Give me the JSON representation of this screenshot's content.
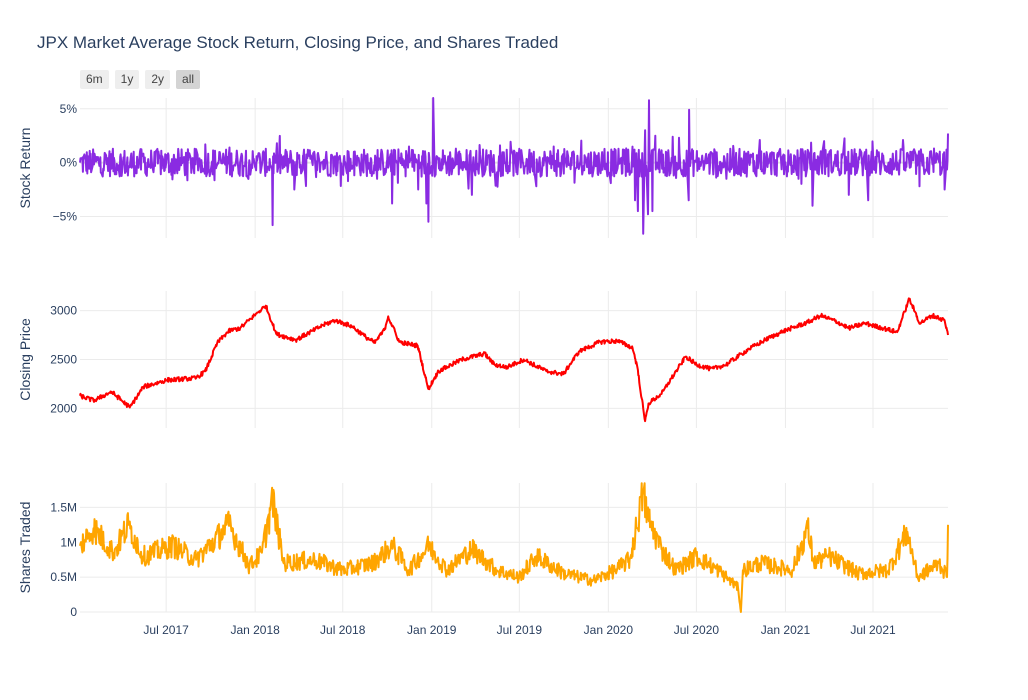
{
  "title": "JPX Market Average Stock Return, Closing Price, and Shares Traded",
  "range_selector": {
    "buttons": [
      {
        "label": "6m",
        "active": false
      },
      {
        "label": "1y",
        "active": false
      },
      {
        "label": "2y",
        "active": false
      },
      {
        "label": "all",
        "active": true
      }
    ]
  },
  "colors": {
    "return_line": "#8a2be2",
    "price_line": "#ff0000",
    "shares_line": "#ffa500",
    "grid": "#ebebeb",
    "zero_line": "#e0e0e0"
  },
  "chart_data": [
    {
      "type": "line",
      "x_range": [
        "2017-01-04",
        "2021-12-03"
      ],
      "x_tick_labels": [
        "Jul 2017",
        "Jan 2018",
        "Jul 2018",
        "Jan 2019",
        "Jul 2019",
        "Jan 2020",
        "Jul 2020",
        "Jan 2021",
        "Jul 2021"
      ],
      "ylabel": "Stock Return",
      "y_unit": "percent",
      "ylim": [
        -7,
        6
      ],
      "y_tick_labels": [
        "5%",
        "0%",
        "−5%"
      ],
      "grid": true,
      "series": [
        {
          "anchors": [
            [
              "2017-01-04",
              0.0
            ],
            [
              "2017-02-15",
              0.5
            ],
            [
              "2017-04-13",
              -1.2
            ],
            [
              "2017-06-01",
              0.4
            ],
            [
              "2017-08-10",
              -0.8
            ],
            [
              "2017-11-09",
              1.4
            ],
            [
              "2018-01-04",
              0.6
            ],
            [
              "2018-02-06",
              -5.8
            ],
            [
              "2018-02-15",
              1.8
            ],
            [
              "2018-03-23",
              -2.5
            ],
            [
              "2018-04-20",
              1.2
            ],
            [
              "2018-06-20",
              -0.8
            ],
            [
              "2018-07-24",
              1.0
            ],
            [
              "2018-09-05",
              -0.7
            ],
            [
              "2018-10-11",
              -3.8
            ],
            [
              "2018-11-15",
              1.5
            ],
            [
              "2018-12-04",
              -2.5
            ],
            [
              "2018-12-21",
              -3.8
            ],
            [
              "2018-12-25",
              -5.5
            ],
            [
              "2018-12-26",
              0.9
            ],
            [
              "2019-01-04",
              6.0
            ],
            [
              "2019-02-20",
              1.3
            ],
            [
              "2019-03-25",
              -3.0
            ],
            [
              "2019-05-14",
              -1.8
            ],
            [
              "2019-06-05",
              1.2
            ],
            [
              "2019-08-05",
              -2.2
            ],
            [
              "2019-09-10",
              1.5
            ],
            [
              "2019-11-15",
              0.5
            ],
            [
              "2020-01-06",
              -1.9
            ],
            [
              "2020-02-05",
              1.0
            ],
            [
              "2020-02-25",
              -3.5
            ],
            [
              "2020-03-02",
              -4.5
            ],
            [
              "2020-03-13",
              -6.6
            ],
            [
              "2020-03-17",
              3.0
            ],
            [
              "2020-03-23",
              -4.8
            ],
            [
              "2020-03-25",
              5.8
            ],
            [
              "2020-04-01",
              -4.5
            ],
            [
              "2020-04-07",
              2.5
            ],
            [
              "2020-05-26",
              2.3
            ],
            [
              "2020-06-15",
              -3.5
            ],
            [
              "2020-06-16",
              4.9
            ],
            [
              "2020-09-01",
              -1.5
            ],
            [
              "2020-11-09",
              2.1
            ],
            [
              "2021-01-28",
              -1.5
            ],
            [
              "2021-02-26",
              -4.0
            ],
            [
              "2021-03-22",
              2.0
            ],
            [
              "2021-05-12",
              -3.0
            ],
            [
              "2021-06-21",
              -3.5
            ],
            [
              "2021-09-01",
              2.1
            ],
            [
              "2021-10-05",
              -2.2
            ],
            [
              "2021-11-26",
              -2.5
            ],
            [
              "2021-12-03",
              2.7
            ]
          ]
        }
      ]
    },
    {
      "type": "line",
      "x_range": [
        "2017-01-04",
        "2021-12-03"
      ],
      "x_tick_labels": [
        "Jul 2017",
        "Jan 2018",
        "Jul 2018",
        "Jan 2019",
        "Jul 2019",
        "Jan 2020",
        "Jul 2020",
        "Jan 2021",
        "Jul 2021"
      ],
      "ylabel": "Closing Price",
      "ylim": [
        1800,
        3200
      ],
      "y_tick_labels": [
        "3000",
        "2500",
        "2000"
      ],
      "grid": true,
      "series": [
        {
          "anchors": [
            [
              "2017-01-04",
              2130
            ],
            [
              "2017-02-01",
              2080
            ],
            [
              "2017-03-10",
              2170
            ],
            [
              "2017-04-17",
              2010
            ],
            [
              "2017-05-15",
              2220
            ],
            [
              "2017-07-03",
              2290
            ],
            [
              "2017-09-01",
              2310
            ],
            [
              "2017-09-20",
              2380
            ],
            [
              "2017-10-15",
              2670
            ],
            [
              "2017-11-07",
              2790
            ],
            [
              "2017-12-01",
              2820
            ],
            [
              "2018-01-04",
              2970
            ],
            [
              "2018-01-23",
              3050
            ],
            [
              "2018-02-14",
              2760
            ],
            [
              "2018-03-26",
              2700
            ],
            [
              "2018-05-21",
              2850
            ],
            [
              "2018-06-15",
              2900
            ],
            [
              "2018-07-20",
              2840
            ],
            [
              "2018-08-15",
              2740
            ],
            [
              "2018-09-05",
              2670
            ],
            [
              "2018-09-25",
              2800
            ],
            [
              "2018-10-03",
              2940
            ],
            [
              "2018-10-26",
              2680
            ],
            [
              "2018-12-03",
              2640
            ],
            [
              "2018-12-25",
              2200
            ],
            [
              "2019-01-15",
              2380
            ],
            [
              "2019-03-04",
              2500
            ],
            [
              "2019-04-20",
              2560
            ],
            [
              "2019-05-10",
              2450
            ],
            [
              "2019-06-05",
              2420
            ],
            [
              "2019-07-10",
              2500
            ],
            [
              "2019-08-26",
              2380
            ],
            [
              "2019-09-30",
              2350
            ],
            [
              "2019-11-01",
              2580
            ],
            [
              "2019-12-15",
              2680
            ],
            [
              "2020-01-20",
              2690
            ],
            [
              "2020-02-20",
              2620
            ],
            [
              "2020-03-01",
              2420
            ],
            [
              "2020-03-13",
              2000
            ],
            [
              "2020-03-17",
              1870
            ],
            [
              "2020-03-24",
              2050
            ],
            [
              "2020-04-20",
              2150
            ],
            [
              "2020-05-20",
              2380
            ],
            [
              "2020-06-09",
              2530
            ],
            [
              "2020-07-01",
              2450
            ],
            [
              "2020-08-01",
              2400
            ],
            [
              "2020-09-01",
              2450
            ],
            [
              "2020-10-15",
              2600
            ],
            [
              "2020-11-20",
              2700
            ],
            [
              "2020-12-28",
              2790
            ],
            [
              "2021-02-16",
              2880
            ],
            [
              "2021-03-15",
              2950
            ],
            [
              "2021-04-20",
              2880
            ],
            [
              "2021-05-12",
              2820
            ],
            [
              "2021-06-14",
              2870
            ],
            [
              "2021-08-20",
              2780
            ],
            [
              "2021-09-14",
              3120
            ],
            [
              "2021-10-06",
              2870
            ],
            [
              "2021-11-01",
              2950
            ],
            [
              "2021-11-26",
              2900
            ],
            [
              "2021-12-03",
              2750
            ]
          ]
        }
      ]
    },
    {
      "type": "line",
      "x_range": [
        "2017-01-04",
        "2021-12-03"
      ],
      "x_tick_labels": [
        "Jul 2017",
        "Jan 2018",
        "Jul 2018",
        "Jan 2019",
        "Jul 2019",
        "Jan 2020",
        "Jul 2020",
        "Jan 2021",
        "Jul 2021"
      ],
      "ylabel": "Shares Traded",
      "ylim": [
        0,
        1850000
      ],
      "y_tick_labels": [
        "1.5M",
        "1M",
        "0.5M",
        "0"
      ],
      "grid": true,
      "series": [
        {
          "anchors": [
            [
              "2017-01-04",
              950000
            ],
            [
              "2017-02-01",
              1200000
            ],
            [
              "2017-03-15",
              850000
            ],
            [
              "2017-04-14",
              1250000
            ],
            [
              "2017-05-15",
              800000
            ],
            [
              "2017-07-15",
              950000
            ],
            [
              "2017-09-01",
              750000
            ],
            [
              "2017-11-09",
              1250000
            ],
            [
              "2017-12-20",
              650000
            ],
            [
              "2018-01-15",
              850000
            ],
            [
              "2018-02-06",
              1600000
            ],
            [
              "2018-03-01",
              700000
            ],
            [
              "2018-05-01",
              750000
            ],
            [
              "2018-07-01",
              600000
            ],
            [
              "2018-09-01",
              700000
            ],
            [
              "2018-10-11",
              950000
            ],
            [
              "2018-11-15",
              600000
            ],
            [
              "2018-12-26",
              950000
            ],
            [
              "2019-02-01",
              600000
            ],
            [
              "2019-03-25",
              900000
            ],
            [
              "2019-05-15",
              600000
            ],
            [
              "2019-07-01",
              500000
            ],
            [
              "2019-08-05",
              800000
            ],
            [
              "2019-10-01",
              550000
            ],
            [
              "2019-12-01",
              450000
            ],
            [
              "2020-01-15",
              600000
            ],
            [
              "2020-02-15",
              750000
            ],
            [
              "2020-03-13",
              1700000
            ],
            [
              "2020-03-25",
              1300000
            ],
            [
              "2020-04-20",
              900000
            ],
            [
              "2020-05-20",
              600000
            ],
            [
              "2020-07-01",
              800000
            ],
            [
              "2020-08-15",
              600000
            ],
            [
              "2020-09-25",
              350000
            ],
            [
              "2020-10-01",
              0
            ],
            [
              "2020-10-05",
              600000
            ],
            [
              "2020-11-09",
              700000
            ],
            [
              "2021-01-15",
              600000
            ],
            [
              "2021-02-16",
              1200000
            ],
            [
              "2021-03-01",
              700000
            ],
            [
              "2021-04-01",
              800000
            ],
            [
              "2021-06-01",
              550000
            ],
            [
              "2021-08-01",
              600000
            ],
            [
              "2021-09-10",
              1150000
            ],
            [
              "2021-10-01",
              500000
            ],
            [
              "2021-11-15",
              700000
            ],
            [
              "2021-12-01",
              500000
            ],
            [
              "2021-12-03",
              1250000
            ]
          ]
        }
      ]
    }
  ]
}
